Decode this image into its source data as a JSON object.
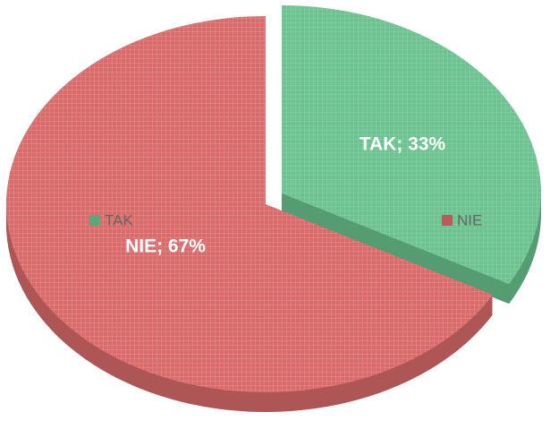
{
  "chart_data": {
    "type": "pie",
    "categories": [
      "TAK",
      "NIE"
    ],
    "values": [
      33,
      67
    ],
    "value_labels": [
      "TAK; 33%",
      "NIE; 67%"
    ],
    "colors": [
      "#6cc38f",
      "#d96b6b"
    ]
  }
}
